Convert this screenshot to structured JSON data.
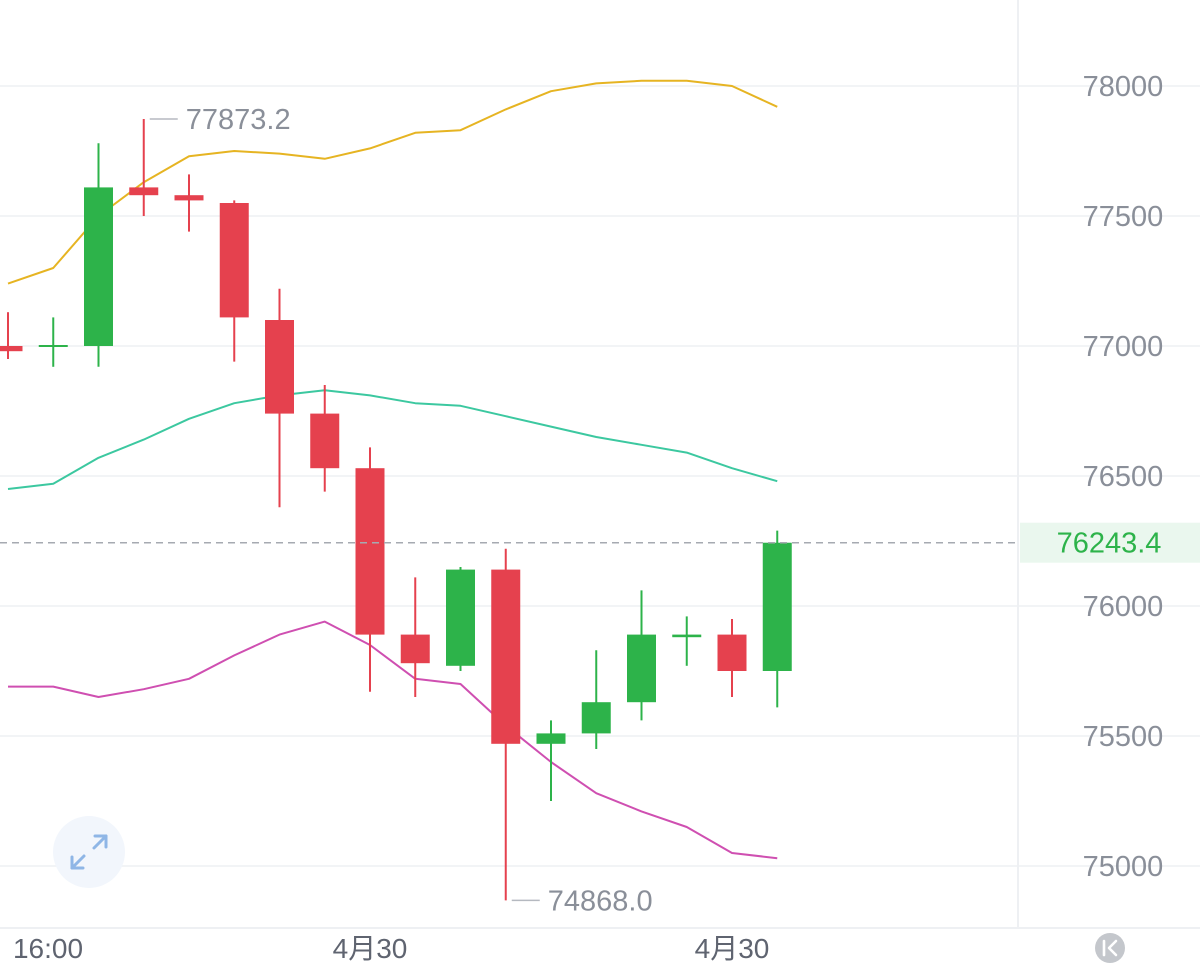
{
  "chart_data": {
    "type": "candlestick",
    "y_ticks": [
      78000,
      77500,
      77000,
      76500,
      76000,
      75500,
      75000
    ],
    "y_tick_labels": [
      "78000",
      "77500",
      "77000",
      "76500",
      "76000",
      "75500",
      "75000"
    ],
    "x_tick_labels": [
      {
        "label": "16:00",
        "index": 0
      },
      {
        "label": "4月30",
        "index": 8
      },
      {
        "label": "4月30",
        "index": 16
      }
    ],
    "ylim": [
      74800,
      78300
    ],
    "grid": true,
    "candles": [
      {
        "open": 77000,
        "high": 77130,
        "low": 76950,
        "close": 76980
      },
      {
        "open": 77000,
        "high": 77110,
        "low": 76920,
        "close": 77000
      },
      {
        "open": 77000,
        "high": 77780,
        "low": 76920,
        "close": 77610
      },
      {
        "open": 77610,
        "high": 77873.2,
        "low": 77500,
        "close": 77580
      },
      {
        "open": 77580,
        "high": 77660,
        "low": 77440,
        "close": 77560
      },
      {
        "open": 77550,
        "high": 77560,
        "low": 76940,
        "close": 77110
      },
      {
        "open": 77100,
        "high": 77220,
        "low": 76380,
        "close": 76740
      },
      {
        "open": 76740,
        "high": 76850,
        "low": 76440,
        "close": 76530
      },
      {
        "open": 76530,
        "high": 76610,
        "low": 75670,
        "close": 75890
      },
      {
        "open": 75890,
        "high": 76110,
        "low": 75650,
        "close": 75780
      },
      {
        "open": 75770,
        "high": 76150,
        "low": 75750,
        "close": 76140
      },
      {
        "open": 76140,
        "high": 76220,
        "low": 74868.0,
        "close": 75470
      },
      {
        "open": 75470,
        "high": 75560,
        "low": 75250,
        "close": 75510
      },
      {
        "open": 75510,
        "high": 75830,
        "low": 75450,
        "close": 75630
      },
      {
        "open": 75630,
        "high": 76060,
        "low": 75560,
        "close": 75890
      },
      {
        "open": 75880,
        "high": 75960,
        "low": 75770,
        "close": 75890
      },
      {
        "open": 75890,
        "high": 75950,
        "low": 75650,
        "close": 75750
      },
      {
        "open": 75750,
        "high": 76290,
        "low": 75610,
        "close": 76243.4
      }
    ],
    "series": [
      {
        "color": "#e6b422",
        "values": [
          77240,
          77300,
          77500,
          77630,
          77730,
          77750,
          77740,
          77720,
          77760,
          77820,
          77830,
          77910,
          77980,
          78010,
          78020,
          78020,
          78000,
          77920
        ]
      },
      {
        "color": "#3cc8a0",
        "values": [
          76450,
          76470,
          76570,
          76640,
          76720,
          76780,
          76810,
          76830,
          76810,
          76780,
          76770,
          76730,
          76690,
          76650,
          76620,
          76590,
          76530,
          76480
        ]
      },
      {
        "color": "#cf4fb1",
        "values": [
          75690,
          75690,
          75650,
          75680,
          75720,
          75810,
          75890,
          75940,
          75850,
          75720,
          75700,
          75540,
          75400,
          75280,
          75210,
          75150,
          75050,
          75030
        ]
      }
    ],
    "annotations": [
      {
        "label": "77873.2",
        "candle_index": 3,
        "value": 77873.2
      },
      {
        "label": "74868.0",
        "candle_index": 11,
        "value": 74868.0
      }
    ],
    "last_price": {
      "label": "76243.4",
      "value": 76243.4
    },
    "colors": {
      "up": "#2db34a",
      "down": "#e5414e"
    }
  },
  "icons": {
    "expand": "expand-arrows-icon",
    "reset": "scroll-to-latest-icon"
  }
}
